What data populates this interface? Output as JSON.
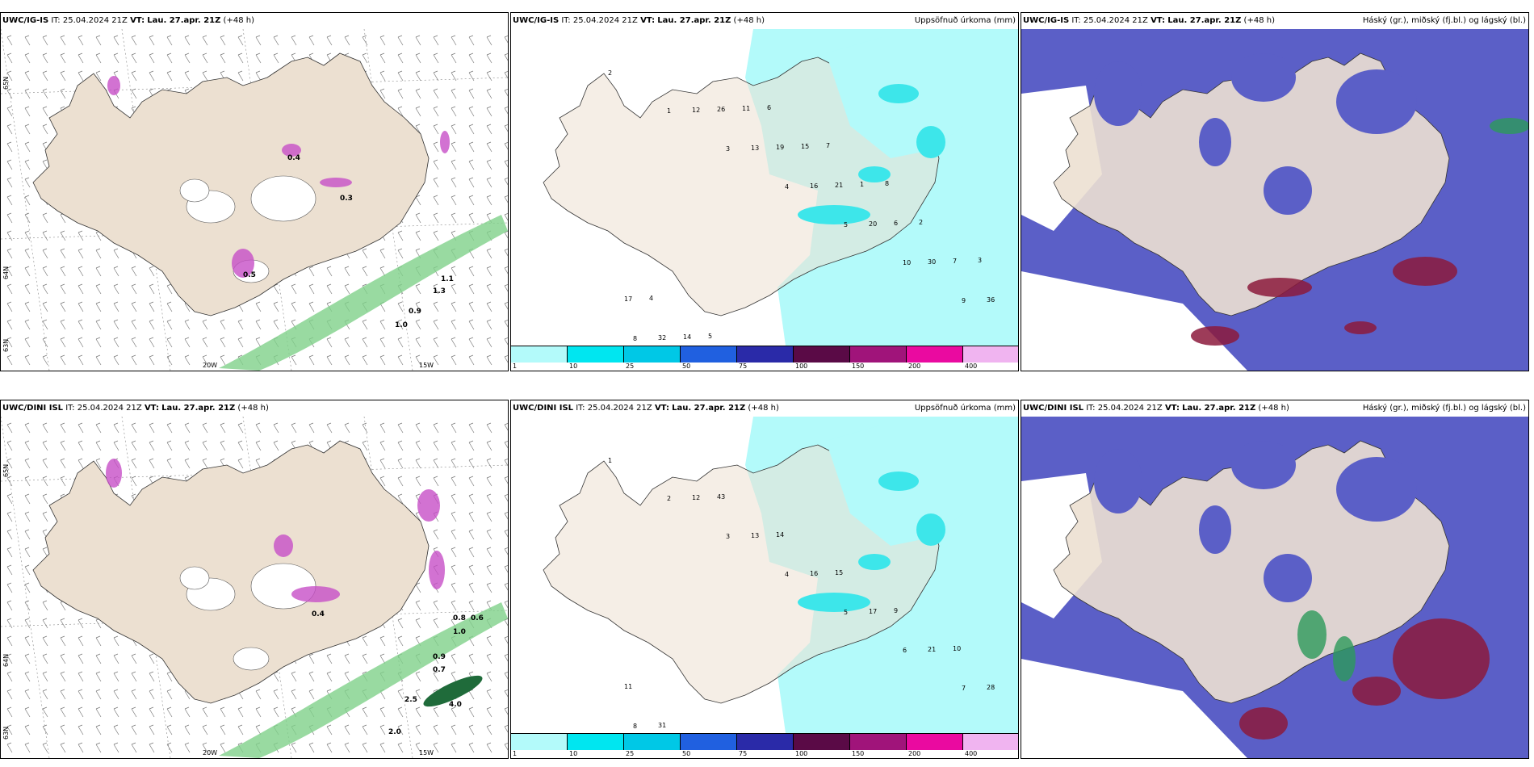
{
  "colors": {
    "land": "#ece0d1",
    "sea": "#ffffff",
    "precip_light": "#b3fafa",
    "precip_mid": "#3de6ea",
    "cloud_blue": "#5b5fc7",
    "cloud_red": "#8c1a3c",
    "cloud_green": "#2c9a5a",
    "magenta": "#c74fc7",
    "green_wave": "#7fd18a"
  },
  "colorbar": {
    "labels": [
      "1",
      "10",
      "25",
      "50",
      "75",
      "100",
      "150",
      "200",
      "400"
    ],
    "colors": [
      "#b3fafa",
      "#00e6f0",
      "#00c8e6",
      "#2060e0",
      "#2a2aa8",
      "#5a0a46",
      "#a0147a",
      "#ea0aa0",
      "#f0b4f0"
    ]
  },
  "rows": [
    {
      "panels": [
        {
          "model": "UWC/IG-IS",
          "it_label": "IT:",
          "it": "25.04.2024 21Z",
          "vt_label": "VT:",
          "vt": "Lau. 27.apr. 21Z",
          "lead": "(+48 h)",
          "right_title": "",
          "lat_labels": [
            "65N",
            "64N",
            "63N"
          ],
          "lon_labels": [
            "20W",
            "15W"
          ],
          "values": [
            "0.4",
            "0.5",
            "0.3",
            "1.1",
            "1.3",
            "0.9",
            "1.0"
          ]
        },
        {
          "model": "UWC/IG-IS",
          "it_label": "IT:",
          "it": "25.04.2024 21Z",
          "vt_label": "VT:",
          "vt": "Lau. 27.apr. 21Z",
          "lead": "(+48 h)",
          "right_title": "Uppsöfnuð úrkoma (mm)",
          "values": [
            "2",
            "1",
            "3",
            "4",
            "5",
            "10",
            "9",
            "8",
            "12",
            "13",
            "16",
            "20",
            "30",
            "36",
            "32",
            "26",
            "19",
            "21",
            "6",
            "7",
            "17",
            "14",
            "11",
            "15",
            "1",
            "2",
            "3",
            "4",
            "5",
            "6",
            "7",
            "8"
          ]
        },
        {
          "model": "UWC/IG-IS",
          "it_label": "IT:",
          "it": "25.04.2024 21Z",
          "vt_label": "VT:",
          "vt": "Lau. 27.apr. 21Z",
          "lead": "(+48 h)",
          "right_title": "Háský (gr.), miðský (fj.bl.) og lágský (bl.)"
        }
      ]
    },
    {
      "panels": [
        {
          "model": "UWC/DINI ISL",
          "it_label": "IT:",
          "it": "25.04.2024 21Z",
          "vt_label": "VT:",
          "vt": "Lau. 27.apr. 21Z",
          "lead": "(+48 h)",
          "right_title": "",
          "lat_labels": [
            "65N",
            "64N",
            "63N"
          ],
          "lon_labels": [
            "20W",
            "15W"
          ],
          "values": [
            "0.4",
            "0.8",
            "0.6",
            "1.0",
            "0.9",
            "0.7",
            "2.5",
            "4.0",
            "2.0"
          ]
        },
        {
          "model": "UWC/DINI ISL",
          "it_label": "IT:",
          "it": "25.04.2024 21Z",
          "vt_label": "VT:",
          "vt": "Lau. 27.apr. 21Z",
          "lead": "(+48 h)",
          "right_title": "Uppsöfnuð úrkoma (mm)",
          "values": [
            "1",
            "2",
            "3",
            "4",
            "5",
            "6",
            "7",
            "8",
            "12",
            "13",
            "16",
            "17",
            "21",
            "28",
            "31",
            "43",
            "14",
            "15",
            "9",
            "10",
            "11"
          ]
        },
        {
          "model": "UWC/DINI ISL",
          "it_label": "IT:",
          "it": "25.04.2024 21Z",
          "vt_label": "VT:",
          "vt": "Lau. 27.apr. 21Z",
          "lead": "(+48 h)",
          "right_title": "Háský (gr.), miðský (fj.bl.) og lágský (bl.)"
        }
      ]
    }
  ]
}
